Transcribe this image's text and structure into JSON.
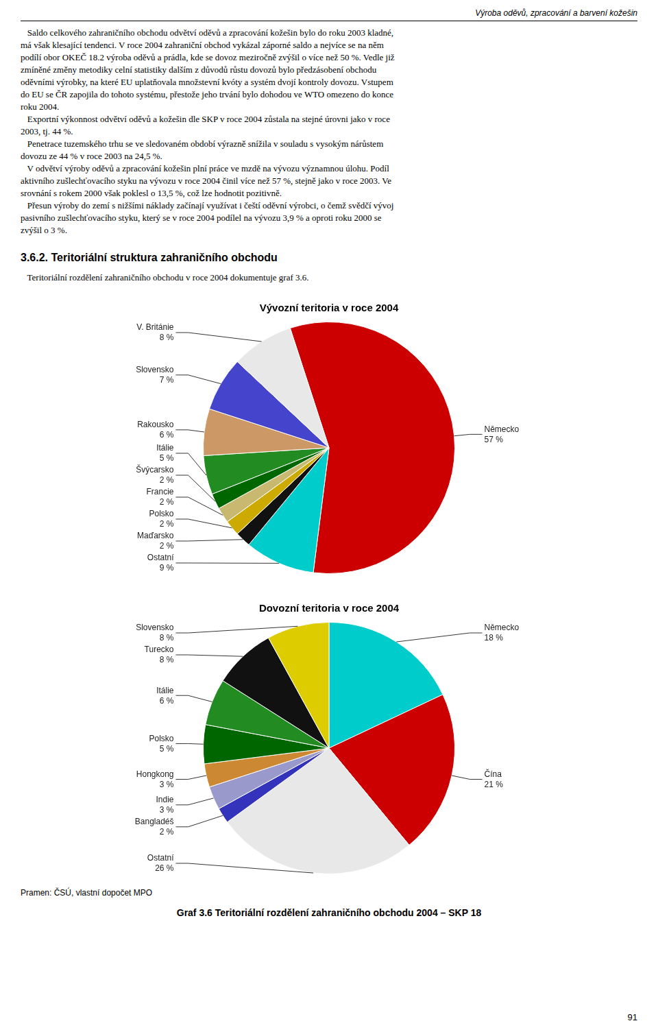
{
  "header": "Výroba oděvů, zpracování a barvení kožešin",
  "body_text": [
    "   Saldo celkového zahraničního obchodu odvětví oděvů a zpracování kožešin bylo do roku 2003 kladné,",
    "má však klesající tendenci. V roce 2004 zahraniční obchod vykázal záporné saldo a nejvíce se na něm",
    "podílí obor OKEČ 18.2 výroba oděvů a prádla, kde se dovoz meziročně zvýšil o více než 50 %. Vedle již",
    "zmíněné změny metodiky celní statistiky dalším z důvodů růstu dovozů bylo předzásobení obchodu",
    "oděvními výrobky, na které EU uplatňovala množstevní kvóty a systém dvojí kontroly dovozu. Vstupem",
    "do EU se ČR zapojila do tohoto systému, přestože jeho trvání bylo dohodou ve WTO omezeno do konce",
    "roku 2004.",
    "   Exportní výkonnost odvětví oděvů a kožešin dle SKP v roce 2004 zůstala na stejné úrovni jako v roce",
    "2003, tj. 44 %.",
    "   Penetrace tuzemského trhu se ve sledovaném období výrazně snížila v souladu s vysokým nárůstem",
    "dovozu ze 44 % v roce 2003 na 24,5 %.",
    "   V odvětví výroby oděvů a zpracování kožešin plní práce ve mzdě na vývozu významnou úlohu. Podíl",
    "aktivního zušlechťovacího styku na vývozu v roce 2004 činil více než 57 %, stejně jako v roce 2003. Ve",
    "srovnání s rokem 2000 však poklesl o 13,5 %, což lze hodnotit pozitivně.",
    "   Přesun výroby do zemí s nižšími náklady začínají využívat i čeští oděvní výrobci, o čemž svědčí vývoj",
    "pasivního zušlechťovacího styku, který se v roce 2004 podílel na vývozu 3,9 % a oproti roku 2000 se",
    "zvýšil o 3 %."
  ],
  "section_title": "3.6.2. Teritoriální struktura zahraničního obchodu",
  "section_intro": "   Teritoriální rozdělení zahraničního obchodu v roce 2004 dokumentuje graf 3.6.",
  "chart_data": [
    {
      "type": "pie",
      "title": "Vývozní teritoria v roce 2004",
      "categories": [
        "Německo",
        "Ostatní",
        "Maďarsko",
        "Polsko",
        "Francie",
        "Švýcarsko",
        "Itálie",
        "Rakousko",
        "Slovensko",
        "V. Británie"
      ],
      "values": [
        57,
        9,
        2,
        2,
        2,
        2,
        5,
        6,
        7,
        8
      ],
      "value_labels": [
        "57 %",
        "9 %",
        "2 %",
        "2 %",
        "2 %",
        "2 %",
        "5 %",
        "6 %",
        "7 %",
        "8 %"
      ],
      "colors": [
        "#CC0000",
        "#00CCCC",
        "#111111",
        "#CCAA00",
        "#C8B870",
        "#006600",
        "#228B22",
        "#CC9966",
        "#4444CC",
        "#E8E8E8"
      ],
      "data_labels": true
    },
    {
      "type": "pie",
      "title": "Dovozní teritoria v roce 2004",
      "categories": [
        "Německo",
        "Čína",
        "Ostatní",
        "Bangladéš",
        "Indie",
        "Hongkong",
        "Polsko",
        "Itálie",
        "Turecko",
        "Slovensko"
      ],
      "values": [
        18,
        21,
        26,
        2,
        3,
        3,
        5,
        6,
        8,
        8
      ],
      "value_labels": [
        "18 %",
        "21 %",
        "26 %",
        "2 %",
        "3 %",
        "3 %",
        "5 %",
        "6 %",
        "8 %",
        "8 %"
      ],
      "colors": [
        "#00CCCC",
        "#CC0000",
        "#E8E8E8",
        "#3333BB",
        "#9999CC",
        "#CC8833",
        "#006600",
        "#228B22",
        "#111111",
        "#DDCC00"
      ],
      "data_labels": true
    }
  ],
  "source_text": "Pramen: ČSÚ, vlastní dopočet MPO",
  "caption": "Graf 3.6 Teritoriální rozdělení zahraničního obchodu 2004 – SKP 18",
  "page_number": "91"
}
